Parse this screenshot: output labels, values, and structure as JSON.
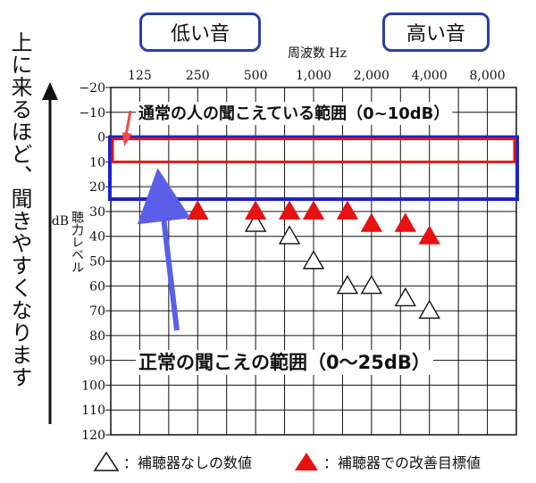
{
  "labels": {
    "low_sound": "低い音",
    "high_sound": "高い音",
    "side_text": "上に来るほど、聞きやすくなります",
    "ylabel_main": "聴力レベル",
    "ylabel_unit": "dB",
    "annotation_normal_person": "通常の人の聞こえている範囲（0~10dB）",
    "annotation_normal_range": "正常の聞こえの範囲（0～25dB）",
    "legend_without_aid": "：補聴器なしの数値",
    "legend_target": "：補聴器での改善目標値"
  },
  "colors": {
    "grid": "#111111",
    "blue_box": "#1a22cc",
    "red_box": "#e01818",
    "arrow_blue": "#5a5ee8",
    "arrow_red": "#f04848",
    "triangle_fill": "#e81010",
    "label_border": "#2a3ea8"
  },
  "chart_data": {
    "type": "scatter",
    "xlabel": "周波数 Hz",
    "ylabel": "聴力レベル dB",
    "x_ticks": [
      "125",
      "250",
      "500",
      "1,000",
      "2,000",
      "4,000",
      "8,000"
    ],
    "ylim": [
      -20,
      120
    ],
    "y_ticks": [
      -20,
      -10,
      0,
      10,
      20,
      30,
      40,
      50,
      60,
      70,
      80,
      90,
      100,
      110,
      120
    ],
    "y_tick_labels": [
      "−20",
      "−10",
      "0",
      "10",
      "20",
      "30",
      "40",
      "50",
      "60",
      "70",
      "80",
      "90",
      "100",
      "110",
      "120"
    ],
    "grid": true,
    "series": [
      {
        "name": "補聴器なしの数値",
        "marker": "open-triangle",
        "points": [
          [
            250,
            30
          ],
          [
            500,
            35
          ],
          [
            750,
            40
          ],
          [
            1000,
            50
          ],
          [
            1500,
            60
          ],
          [
            2000,
            60
          ],
          [
            3000,
            65
          ],
          [
            4000,
            70
          ]
        ]
      },
      {
        "name": "補聴器での改善目標値",
        "marker": "filled-triangle",
        "points": [
          [
            250,
            30
          ],
          [
            500,
            30
          ],
          [
            750,
            30
          ],
          [
            1000,
            30
          ],
          [
            1500,
            30
          ],
          [
            2000,
            35
          ],
          [
            3000,
            35
          ],
          [
            4000,
            40
          ]
        ]
      }
    ],
    "ranges": [
      {
        "name": "通常の人の聞こえている範囲",
        "from": 0,
        "to": 10
      },
      {
        "name": "正常の聞こえの範囲",
        "from": 0,
        "to": 25
      }
    ]
  }
}
